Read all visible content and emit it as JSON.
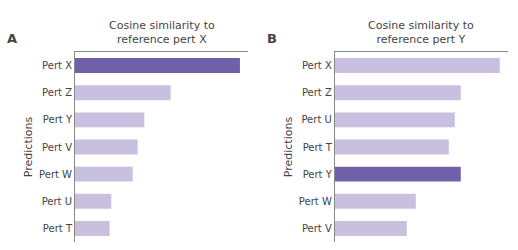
{
  "chart_data": [
    {
      "type": "bar",
      "orientation": "horizontal",
      "title": "Cosine similarity to\nreference pert X",
      "annotations": [
        "A"
      ],
      "ylabel": "Predictions",
      "categories": [
        "Pert X",
        "Pert Z",
        "Pert Y",
        "Pert V",
        "Pert W",
        "Pert U",
        "Pert T"
      ],
      "values": [
        1.0,
        0.58,
        0.42,
        0.38,
        0.35,
        0.22,
        0.21
      ],
      "colors": [
        "#7060aa",
        "#c8c0de",
        "#c8c0de",
        "#c8c0de",
        "#c8c0de",
        "#c8c0de",
        "#c8c0de"
      ],
      "xlim": [
        0,
        1.05
      ],
      "grid": false,
      "tick_labels": "y"
    },
    {
      "type": "bar",
      "orientation": "horizontal",
      "title": "Cosine similarity to\nreference pert Y",
      "annotations": [
        "B"
      ],
      "ylabel": "Predictions",
      "categories": [
        "Pert X",
        "Pert Z",
        "Pert U",
        "Pert T",
        "Pert Y",
        "Pert W",
        "Pert V"
      ],
      "values": [
        0.55,
        0.42,
        0.4,
        0.38,
        0.42,
        0.27,
        0.24
      ],
      "colors": [
        "#c8c0de",
        "#c8c0de",
        "#c8c0de",
        "#c8c0de",
        "#7060aa",
        "#c8c0de",
        "#c8c0de"
      ],
      "xlim": [
        0,
        0.5775
      ],
      "grid": false,
      "tick_labels": "y"
    }
  ]
}
